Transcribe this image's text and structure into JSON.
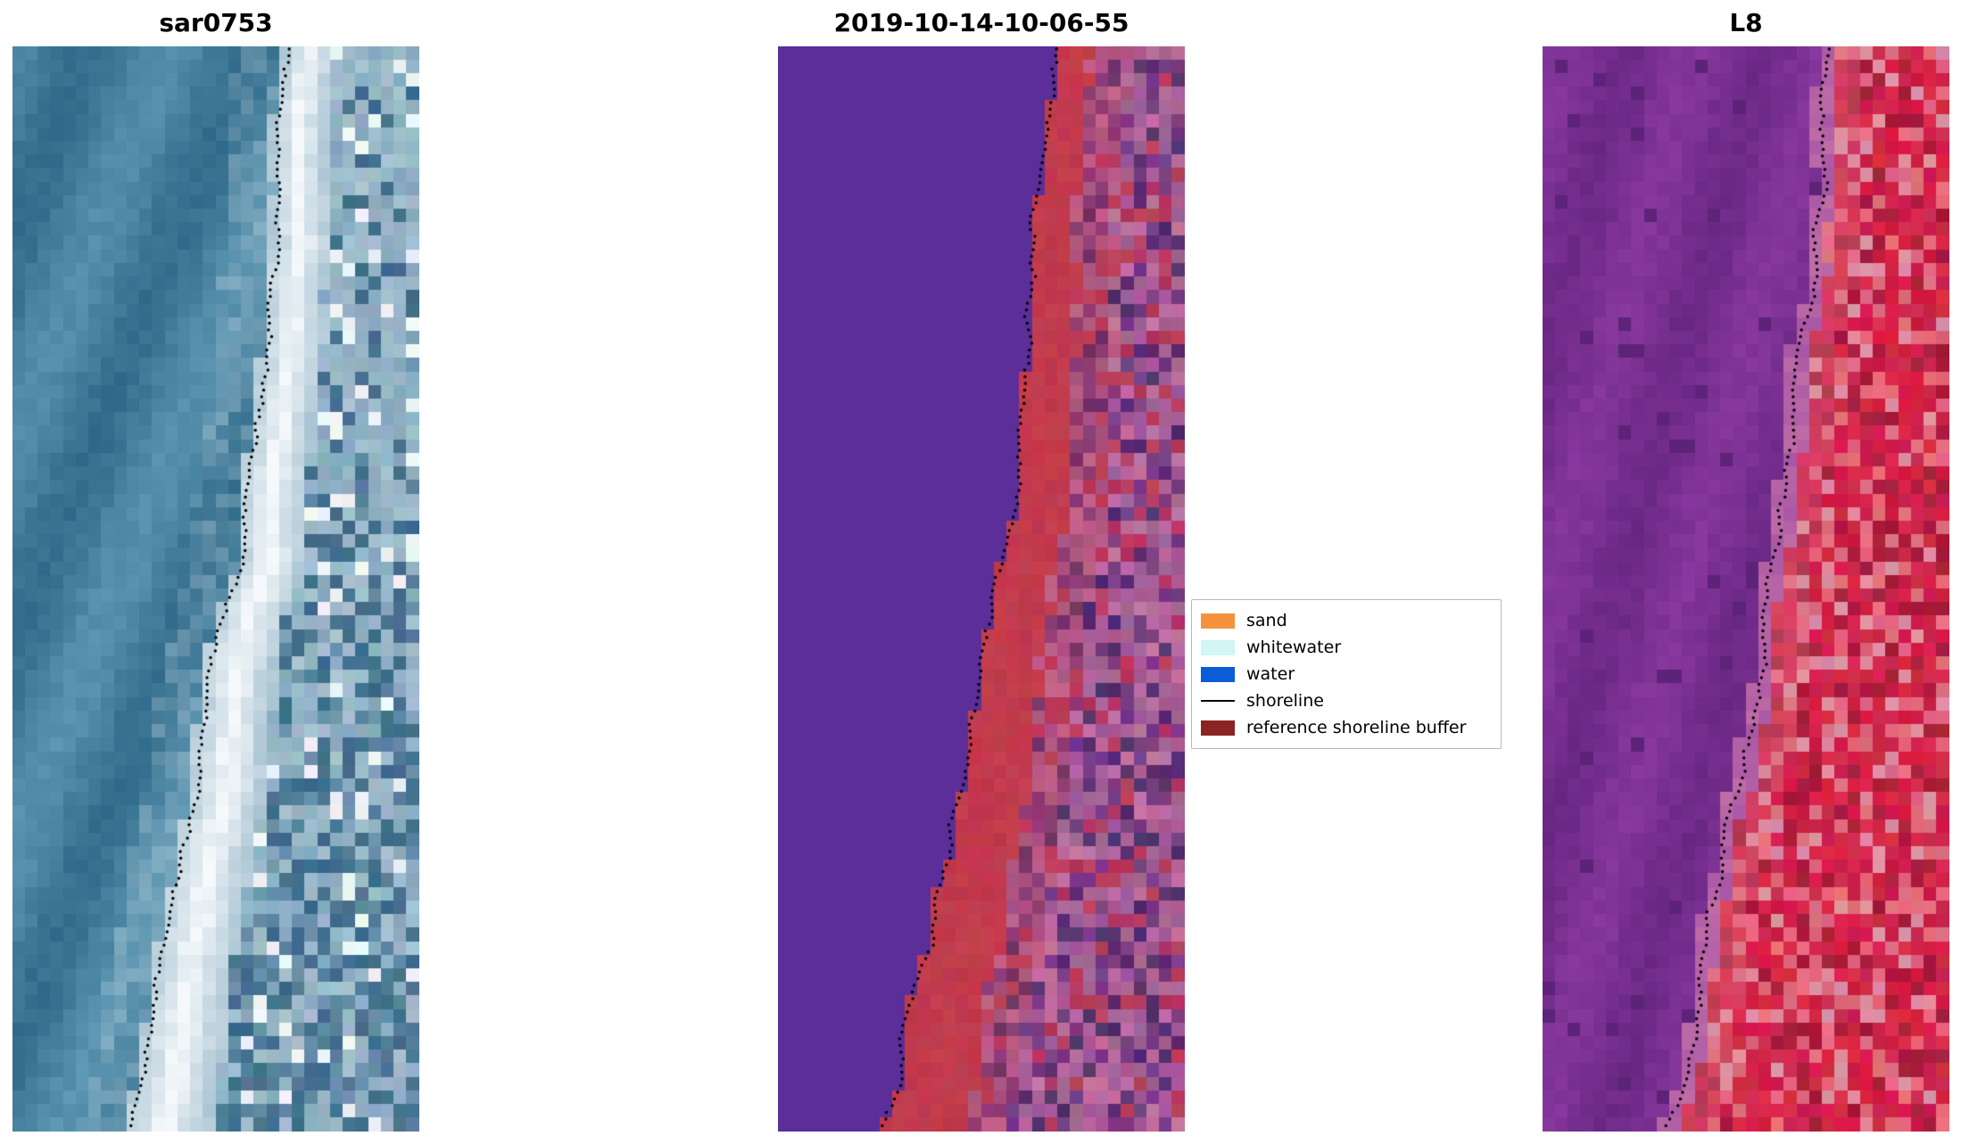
{
  "page": {
    "background": "#ffffff"
  },
  "chart_data": {
    "type": "heatmap",
    "figure_kind": "three-panel satellite shoreline-detection figure",
    "panels": [
      {
        "id": "sar0753",
        "title": "sar0753",
        "kind": "sar_rgb",
        "seed": 7,
        "description": "Optical/SAR crop: teal ocean on the left, bright white surf band running diagonally, blue-grey beach pixels on the right, dotted black detected shoreline",
        "grid": {
          "cols": 32,
          "rows": 80
        },
        "shoreline": {
          "top_frac": 0.68,
          "bottom_frac": 0.28,
          "curve_exp": 1.5,
          "style": "dotted",
          "color": "#000000"
        },
        "palette": {
          "ocean_dark": "#2d6888",
          "ocean_light": "#629cb8",
          "surf": "#f5f9fb",
          "shore_light": "#a8c3d2",
          "shore_mid": "#6d95ae",
          "shore_dark": "#47708e",
          "white_patch": "#eef4f7"
        }
      },
      {
        "id": "classified",
        "title": "2019-10-14-10-06-55",
        "kind": "classified",
        "seed": 11,
        "description": "Classified image: flat purple water, crimson reference shoreline buffer band, mottled pink/purple land pixels, dotted black shoreline",
        "grid": {
          "cols": 32,
          "rows": 80
        },
        "shoreline": {
          "top_frac": 0.69,
          "bottom_frac": 0.27,
          "curve_exp": 1.5,
          "style": "dotted",
          "color": "#000000"
        },
        "buffer": {
          "width_top_frac": 0.08,
          "width_bottom_frac": 0.2,
          "color": "#c23b4d"
        },
        "palette": {
          "water": "#5b2e99",
          "land_mauve": "#a55f96",
          "land_purple": "#7a3c87",
          "land_pink": "#bf6ea0",
          "land_red": "#b93b5f",
          "land_dark": "#563070"
        }
      },
      {
        "id": "L8",
        "title": "L8",
        "kind": "false_color",
        "seed": 13,
        "description": "Landsat-8 false-colour crop: mottled purple water on the left, crimson/red land on the right, dotted black shoreline along the boundary",
        "grid": {
          "cols": 32,
          "rows": 80
        },
        "shoreline": {
          "top_frac": 0.7,
          "bottom_frac": 0.3,
          "curve_exp": 1.5,
          "style": "dotted",
          "color": "#000000"
        },
        "palette": {
          "water_dark": "#5c2379",
          "water_base": "#7e2d94",
          "water_light": "#9140a6",
          "transition": "#c06da6",
          "land_base": "#d32449",
          "land_light": "#e3697e",
          "land_dark": "#a81d3c",
          "land_pink": "#de8fa2"
        }
      }
    ],
    "legend": {
      "position": "center-right",
      "entries": [
        {
          "label": "sand",
          "swatch": "patch",
          "color": "#f5923c"
        },
        {
          "label": "whitewater",
          "swatch": "patch",
          "color": "#d0f6f6"
        },
        {
          "label": "water",
          "swatch": "patch",
          "color": "#0b5cd7"
        },
        {
          "label": "shoreline",
          "swatch": "line",
          "color": "#000000"
        },
        {
          "label": "reference shoreline buffer",
          "swatch": "patch",
          "color": "#8c2323"
        }
      ]
    }
  }
}
